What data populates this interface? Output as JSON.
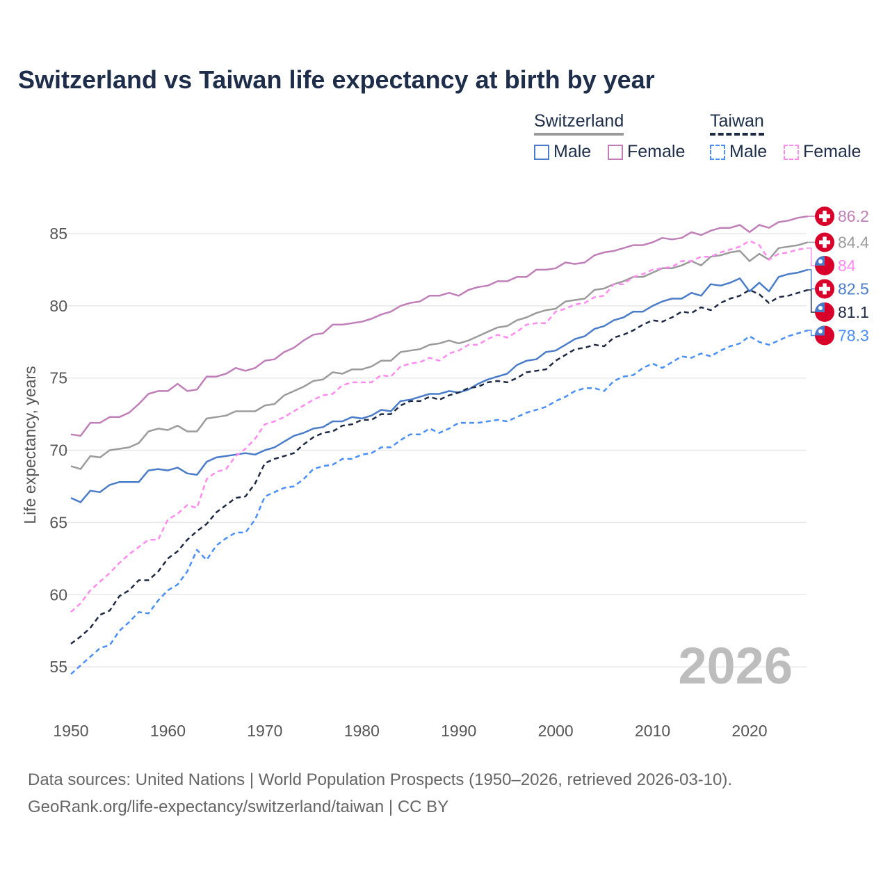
{
  "title": "Switzerland vs Taiwan life expectancy at birth by year",
  "legend": {
    "groups": [
      {
        "name": "Switzerland",
        "items": [
          "Male",
          "Female"
        ]
      },
      {
        "name": "Taiwan",
        "items": [
          "Male",
          "Female"
        ]
      }
    ]
  },
  "watermark_year": "2026",
  "sources": {
    "line1": "Data sources: United Nations | World Population Prospects (1950–2026, retrieved 2026-03-10).",
    "line2": "GeoRank.org/life-expectancy/switzerland/taiwan | CC BY"
  },
  "chart_data": {
    "type": "line",
    "title": "Switzerland vs Taiwan life expectancy at birth by year",
    "xlabel": "",
    "ylabel": "Life expectancy, years",
    "xlim": [
      1950,
      2026
    ],
    "ylim": [
      53,
      88
    ],
    "xticks": [
      1950,
      1960,
      1970,
      1980,
      1990,
      2000,
      2010,
      2020
    ],
    "yticks": [
      55,
      60,
      65,
      70,
      75,
      80,
      85
    ],
    "grid": true,
    "legend_position": "top-right",
    "x_start": 1950,
    "series": [
      {
        "name": "Switzerland",
        "country": "switzerland",
        "sex": "total",
        "color": "#9b9b9b",
        "dashed": false,
        "last_label": "84.4",
        "values": [
          68.9,
          68.7,
          69.6,
          69.5,
          70.0,
          70.1,
          70.2,
          70.5,
          71.3,
          71.5,
          71.4,
          71.7,
          71.3,
          71.3,
          72.2,
          72.3,
          72.4,
          72.7,
          72.7,
          72.7,
          73.1,
          73.2,
          73.8,
          74.1,
          74.4,
          74.8,
          74.9,
          75.4,
          75.3,
          75.6,
          75.6,
          75.8,
          76.2,
          76.2,
          76.8,
          76.9,
          77.0,
          77.3,
          77.4,
          77.6,
          77.4,
          77.6,
          77.9,
          78.2,
          78.5,
          78.6,
          79.0,
          79.2,
          79.5,
          79.7,
          79.8,
          80.3,
          80.4,
          80.5,
          81.1,
          81.2,
          81.5,
          81.7,
          82.0,
          82.0,
          82.3,
          82.6,
          82.6,
          82.8,
          83.1,
          82.8,
          83.4,
          83.5,
          83.7,
          83.8,
          83.1,
          83.6,
          83.2,
          84.0,
          84.1,
          84.2,
          84.4
        ]
      },
      {
        "name": "Switzerland Male",
        "country": "switzerland",
        "sex": "male",
        "color": "#4a7cc9",
        "dashed": false,
        "last_label": "82.5",
        "values": [
          66.7,
          66.4,
          67.2,
          67.1,
          67.6,
          67.8,
          67.8,
          67.8,
          68.6,
          68.7,
          68.6,
          68.8,
          68.4,
          68.3,
          69.2,
          69.5,
          69.6,
          69.7,
          69.8,
          69.7,
          70.0,
          70.2,
          70.6,
          71.0,
          71.2,
          71.5,
          71.6,
          72.0,
          72.0,
          72.3,
          72.2,
          72.4,
          72.8,
          72.7,
          73.4,
          73.5,
          73.7,
          73.9,
          73.9,
          74.1,
          74.0,
          74.2,
          74.6,
          74.9,
          75.1,
          75.3,
          75.9,
          76.2,
          76.3,
          76.8,
          76.9,
          77.3,
          77.7,
          77.9,
          78.4,
          78.6,
          79.0,
          79.2,
          79.6,
          79.6,
          80.0,
          80.3,
          80.5,
          80.5,
          80.9,
          80.7,
          81.5,
          81.4,
          81.6,
          81.9,
          81.0,
          81.6,
          81.0,
          82.0,
          82.2,
          82.3,
          82.5
        ]
      },
      {
        "name": "Switzerland Female",
        "country": "switzerland",
        "sex": "female",
        "color": "#c07fb8",
        "dashed": false,
        "last_label": "86.2",
        "values": [
          71.1,
          71.0,
          71.9,
          71.9,
          72.3,
          72.3,
          72.6,
          73.2,
          73.9,
          74.1,
          74.1,
          74.6,
          74.1,
          74.2,
          75.1,
          75.1,
          75.3,
          75.7,
          75.5,
          75.7,
          76.2,
          76.3,
          76.8,
          77.1,
          77.6,
          78.0,
          78.1,
          78.7,
          78.7,
          78.8,
          78.9,
          79.1,
          79.4,
          79.6,
          80.0,
          80.2,
          80.3,
          80.7,
          80.7,
          80.9,
          80.7,
          81.1,
          81.3,
          81.4,
          81.7,
          81.7,
          82.0,
          82.0,
          82.5,
          82.5,
          82.6,
          83.0,
          82.9,
          83.0,
          83.5,
          83.7,
          83.8,
          84.0,
          84.2,
          84.2,
          84.4,
          84.7,
          84.6,
          84.7,
          85.1,
          84.9,
          85.2,
          85.4,
          85.4,
          85.6,
          85.1,
          85.6,
          85.4,
          85.8,
          85.9,
          86.1,
          86.2
        ]
      },
      {
        "name": "Taiwan",
        "country": "taiwan",
        "sex": "total",
        "color": "#1e2a44",
        "dashed": true,
        "last_label": "81.1",
        "values": [
          56.6,
          57.1,
          57.7,
          58.6,
          58.9,
          59.9,
          60.3,
          61.0,
          61.0,
          61.6,
          62.5,
          63.0,
          63.8,
          64.4,
          64.9,
          65.7,
          66.2,
          66.7,
          66.8,
          67.7,
          69.1,
          69.4,
          69.6,
          69.8,
          70.4,
          70.9,
          71.2,
          71.3,
          71.7,
          71.8,
          72.1,
          72.1,
          72.5,
          72.5,
          73.1,
          73.4,
          73.4,
          73.7,
          73.5,
          73.8,
          74.0,
          74.3,
          74.4,
          74.7,
          74.8,
          74.7,
          75.0,
          75.4,
          75.5,
          75.6,
          76.2,
          76.6,
          77.0,
          77.1,
          77.3,
          77.2,
          77.8,
          78.0,
          78.3,
          78.7,
          79.0,
          78.9,
          79.2,
          79.6,
          79.5,
          79.9,
          79.7,
          80.2,
          80.5,
          80.7,
          81.1,
          80.8,
          80.2,
          80.6,
          80.7,
          80.9,
          81.1
        ]
      },
      {
        "name": "Taiwan Male",
        "country": "taiwan",
        "sex": "male",
        "color": "#4a8ff5",
        "dashed": true,
        "last_label": "78.3",
        "values": [
          54.5,
          55.1,
          55.7,
          56.3,
          56.5,
          57.5,
          58.1,
          58.8,
          58.7,
          59.6,
          60.3,
          60.7,
          61.6,
          63.1,
          62.4,
          63.4,
          63.9,
          64.3,
          64.3,
          65.2,
          66.8,
          67.1,
          67.4,
          67.5,
          68.0,
          68.7,
          68.9,
          69.0,
          69.4,
          69.4,
          69.7,
          69.8,
          70.2,
          70.2,
          70.7,
          71.1,
          71.1,
          71.5,
          71.2,
          71.5,
          71.9,
          71.9,
          71.9,
          72.0,
          72.1,
          72.0,
          72.3,
          72.6,
          72.8,
          73.0,
          73.4,
          73.7,
          74.1,
          74.3,
          74.3,
          74.1,
          74.8,
          75.1,
          75.2,
          75.7,
          76.0,
          75.7,
          76.1,
          76.5,
          76.4,
          76.7,
          76.5,
          76.9,
          77.2,
          77.4,
          77.9,
          77.5,
          77.3,
          77.6,
          77.9,
          78.1,
          78.3
        ]
      },
      {
        "name": "Taiwan Female",
        "country": "taiwan",
        "sex": "female",
        "color": "#ff8af0",
        "dashed": true,
        "last_label": "84",
        "values": [
          58.8,
          59.4,
          60.3,
          60.9,
          61.5,
          62.2,
          62.8,
          63.3,
          63.8,
          63.8,
          65.2,
          65.6,
          66.2,
          66.0,
          68.0,
          68.5,
          68.7,
          69.6,
          70.1,
          70.8,
          71.8,
          72.0,
          72.3,
          72.7,
          73.1,
          73.5,
          73.8,
          73.9,
          74.5,
          74.7,
          74.7,
          74.7,
          75.2,
          75.1,
          75.8,
          76.0,
          76.1,
          76.4,
          76.2,
          76.7,
          76.9,
          77.3,
          77.3,
          77.7,
          78.0,
          77.8,
          78.2,
          78.7,
          78.8,
          78.8,
          79.6,
          79.8,
          80.1,
          80.2,
          80.6,
          80.7,
          81.5,
          81.5,
          82.0,
          82.2,
          82.5,
          82.6,
          82.7,
          83.1,
          83.1,
          83.4,
          83.4,
          83.7,
          83.9,
          84.1,
          84.5,
          84.2,
          83.2,
          83.6,
          83.7,
          83.9,
          84.0
        ]
      }
    ]
  }
}
